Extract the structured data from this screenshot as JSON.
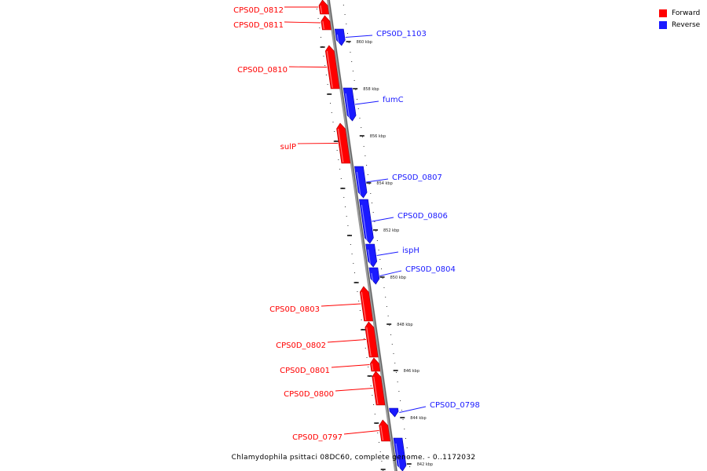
{
  "legend": {
    "forward_label": "Forward",
    "reverse_label": "Reverse",
    "forward_color": "#ff0000",
    "reverse_color": "#1a1aff"
  },
  "footer": {
    "title": "Chlamydophila psittaci 08DC60, complete genome. - 0..1172032"
  },
  "ticks": [
    "860 kbp",
    "858 kbp",
    "856 kbp",
    "854 kbp",
    "852 kbp",
    "850 kbp",
    "848 kbp",
    "846 kbp",
    "844 kbp",
    "842 kbp"
  ],
  "genes": [
    {
      "name": "CPS0D_0812",
      "strand": "forward"
    },
    {
      "name": "CPS0D_0811",
      "strand": "forward"
    },
    {
      "name": "CPS0D_1103",
      "strand": "reverse"
    },
    {
      "name": "CPS0D_0810",
      "strand": "forward"
    },
    {
      "name": "fumC",
      "strand": "reverse"
    },
    {
      "name": "sulP",
      "strand": "forward"
    },
    {
      "name": "CPS0D_0807",
      "strand": "reverse"
    },
    {
      "name": "CPS0D_0806",
      "strand": "reverse"
    },
    {
      "name": "ispH",
      "strand": "reverse"
    },
    {
      "name": "CPS0D_0804",
      "strand": "reverse"
    },
    {
      "name": "CPS0D_0803",
      "strand": "forward"
    },
    {
      "name": "CPS0D_0802",
      "strand": "forward"
    },
    {
      "name": "CPS0D_0801",
      "strand": "forward"
    },
    {
      "name": "CPS0D_0800",
      "strand": "forward"
    },
    {
      "name": "CPS0D_0798",
      "strand": "reverse"
    },
    {
      "name": "CPS0D_0797",
      "strand": "forward"
    },
    {
      "name": "",
      "strand": "reverse"
    }
  ]
}
